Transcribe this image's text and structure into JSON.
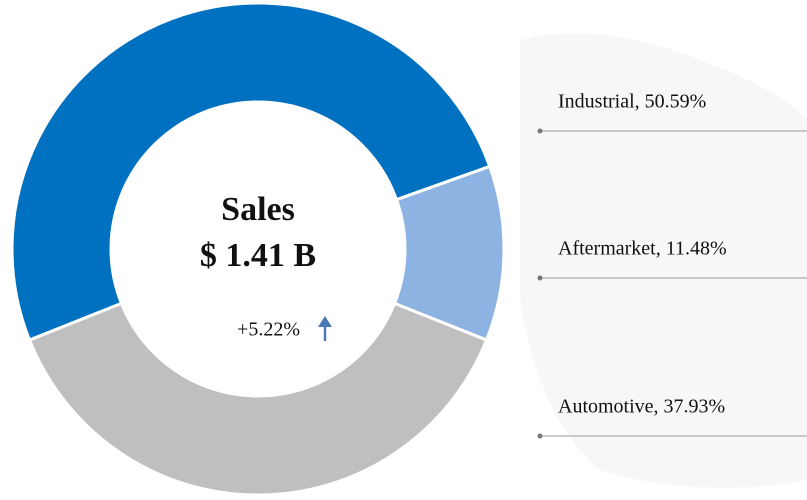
{
  "chart_data": {
    "type": "donut",
    "center_title": "Sales",
    "center_value": "$ 1.41 B",
    "change": "+5.22%",
    "values": [
      50.59,
      11.48,
      37.93
    ],
    "value_labels": [
      "Industrial, 50.59%",
      "Aftermarket, 11.48%",
      "Automotive, 37.93%"
    ],
    "colors": [
      "#0070c0",
      "#8db3e2",
      "#bfbfbf"
    ]
  }
}
